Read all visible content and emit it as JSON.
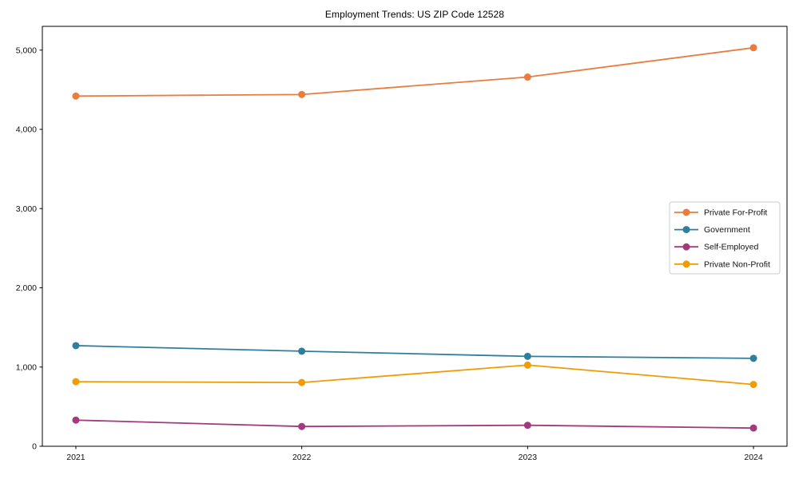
{
  "chart_data": {
    "type": "line",
    "title": "Employment Trends: US ZIP Code 12528",
    "xlabel": "",
    "ylabel": "",
    "x": [
      2021,
      2022,
      2023,
      2024
    ],
    "x_tick_labels": [
      "2021",
      "2022",
      "2023",
      "2024"
    ],
    "series": [
      {
        "name": "Private For-Profit",
        "color": "#e87d3e",
        "values": [
          4420,
          4440,
          4660,
          5030
        ]
      },
      {
        "name": "Government",
        "color": "#2e7f9e",
        "values": [
          1270,
          1200,
          1135,
          1110
        ]
      },
      {
        "name": "Self-Employed",
        "color": "#a23a7d",
        "values": [
          330,
          250,
          265,
          230
        ]
      },
      {
        "name": "Private Non-Profit",
        "color": "#f09c05",
        "values": [
          815,
          805,
          1025,
          780
        ]
      }
    ],
    "ylim": [
      0,
      5300
    ],
    "yticks": [
      {
        "value": 0,
        "label": "0"
      },
      {
        "value": 1000,
        "label": "1,000"
      },
      {
        "value": 2000,
        "label": "2,000"
      },
      {
        "value": 3000,
        "label": "3,000"
      },
      {
        "value": 4000,
        "label": "4,000"
      },
      {
        "value": 5000,
        "label": "5,000"
      }
    ],
    "grid": false,
    "legend_position": "center right",
    "legend_border_color": "#cccccc",
    "axis_color": "#000000",
    "background_color": "#ffffff",
    "marker": "circle"
  }
}
